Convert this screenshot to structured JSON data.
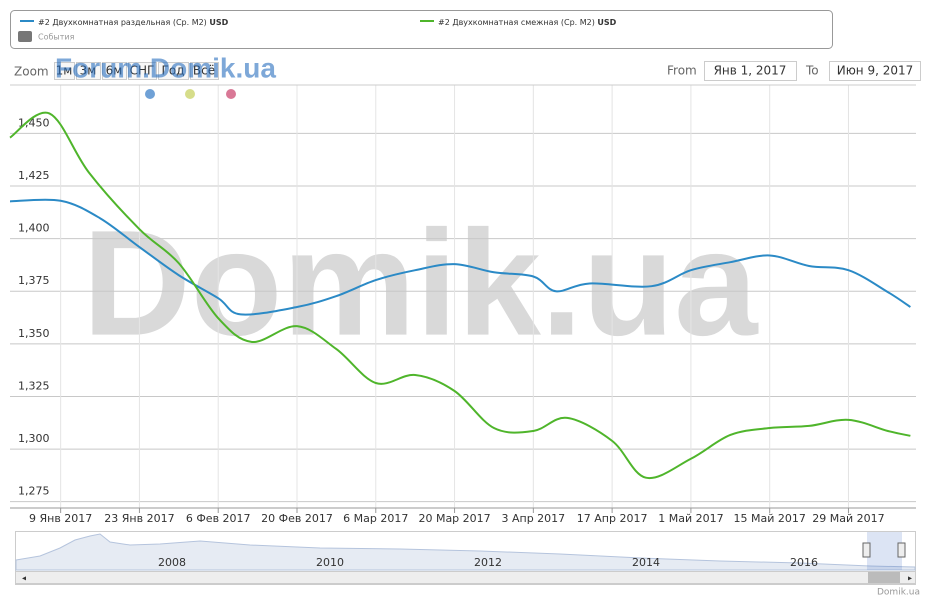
{
  "chart_data": {
    "type": "line",
    "watermark": "Domik.ua",
    "forum_watermark": "Forum.Domik.ua",
    "legend_unit": "USD",
    "events_label": "События",
    "zoom_label": "Zoom",
    "range_buttons": [
      "1м",
      "3м",
      "6м",
      "СНГ",
      "Год",
      "Всё"
    ],
    "from_label": "From",
    "from_value": "Янв 1, 2017",
    "to_label": "To",
    "to_value": "Июн 9, 2017",
    "navigator_years": [
      "2008",
      "2010",
      "2012",
      "2014",
      "2016"
    ],
    "credits": "Domik.ua",
    "xlim": [
      "2016-12-31",
      "2017-06-10"
    ],
    "ylim": [
      1272,
      1473
    ],
    "xticks": [
      {
        "value": "2017-01-09",
        "label": "9 Янв 2017"
      },
      {
        "value": "2017-01-23",
        "label": "23 Янв 2017"
      },
      {
        "value": "2017-02-06",
        "label": "6 Фев 2017"
      },
      {
        "value": "2017-02-20",
        "label": "20 Фев 2017"
      },
      {
        "value": "2017-03-06",
        "label": "6 Мар 2017"
      },
      {
        "value": "2017-03-20",
        "label": "20 Мар 2017"
      },
      {
        "value": "2017-04-03",
        "label": "3 Апр 2017"
      },
      {
        "value": "2017-04-17",
        "label": "17 Апр 2017"
      },
      {
        "value": "2017-05-01",
        "label": "1 Май 2017"
      },
      {
        "value": "2017-05-15",
        "label": "15 Май 2017"
      },
      {
        "value": "2017-05-29",
        "label": "29 Май 2017"
      }
    ],
    "yticks": [
      {
        "value": 1275,
        "label": "1,275"
      },
      {
        "value": 1300,
        "label": "1,300"
      },
      {
        "value": 1325,
        "label": "1,325"
      },
      {
        "value": 1350,
        "label": "1,350"
      },
      {
        "value": 1375,
        "label": "1,375"
      },
      {
        "value": 1400,
        "label": "1,400"
      },
      {
        "value": 1425,
        "label": "1,425"
      },
      {
        "value": 1450,
        "label": "1,450"
      }
    ],
    "grid": true,
    "series": [
      {
        "name": "#2 Двухкомнатная раздельная (Ср. М2)",
        "color": "#2b8ac6",
        "x": [
          "2016-12-31",
          "2017-01-09",
          "2017-01-16",
          "2017-01-23",
          "2017-01-30",
          "2017-02-06",
          "2017-02-10",
          "2017-02-20",
          "2017-02-27",
          "2017-03-06",
          "2017-03-13",
          "2017-03-20",
          "2017-03-27",
          "2017-04-03",
          "2017-04-07",
          "2017-04-13",
          "2017-04-24",
          "2017-05-01",
          "2017-05-08",
          "2017-05-15",
          "2017-05-22",
          "2017-05-29",
          "2017-06-05",
          "2017-06-09"
        ],
        "values": [
          1417.7,
          1418,
          1409.7,
          1396,
          1382.6,
          1371.7,
          1364,
          1367.5,
          1372.7,
          1380.3,
          1385,
          1387.9,
          1384,
          1382,
          1375,
          1378.7,
          1377.4,
          1385,
          1388.8,
          1392,
          1387,
          1385,
          1374.6,
          1367.5
        ]
      },
      {
        "name": "#2 Двухкомнатная смежная (Ср. М2)",
        "color": "#4fb52b",
        "x": [
          "2016-12-31",
          "2017-01-07",
          "2017-01-14",
          "2017-01-23",
          "2017-01-30",
          "2017-02-06",
          "2017-02-12",
          "2017-02-20",
          "2017-02-27",
          "2017-03-06",
          "2017-03-13",
          "2017-03-20",
          "2017-03-27",
          "2017-04-03",
          "2017-04-09",
          "2017-04-17",
          "2017-04-23",
          "2017-05-01",
          "2017-05-08",
          "2017-05-15",
          "2017-05-22",
          "2017-05-29",
          "2017-06-05",
          "2017-06-09"
        ],
        "values": [
          1448,
          1459.5,
          1431.5,
          1404.5,
          1388.3,
          1362.2,
          1350.9,
          1358.4,
          1347.5,
          1331.4,
          1335.2,
          1327.6,
          1310,
          1308.6,
          1314.8,
          1303.9,
          1286.4,
          1295.4,
          1306.7,
          1310,
          1311,
          1313.9,
          1308.6,
          1306.3
        ]
      }
    ]
  }
}
